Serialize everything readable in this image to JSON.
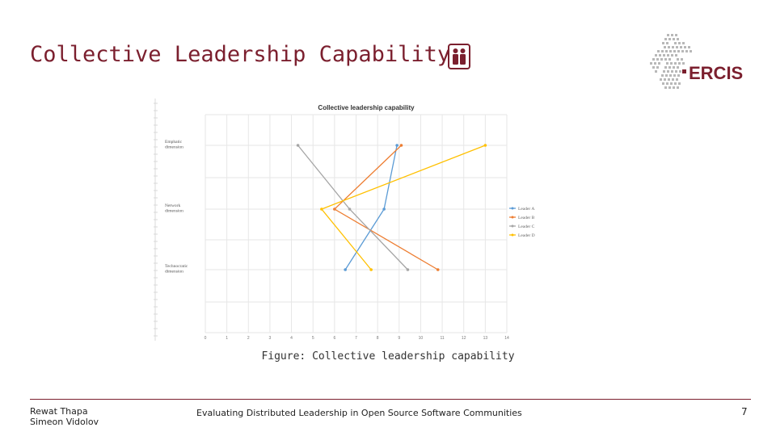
{
  "slide": {
    "title": "Collective Leadership Capability",
    "caption": "Figure: Collective leadership capability",
    "logo_text": "ERCIS",
    "authors": [
      "Rewat Thapa",
      "Simeon Vidolov"
    ],
    "footer_title": "Evaluating Distributed Leadership in Open Source Software Communities",
    "page_number": "7"
  },
  "colors": {
    "title": "#7b1f2e",
    "leader_a": "#5b9bd5",
    "leader_b": "#ed7d31",
    "leader_c": "#a5a5a5",
    "leader_d": "#ffc000"
  },
  "chart_data": {
    "type": "line",
    "title": "Collective leadership capability",
    "xlim": [
      0,
      14
    ],
    "x_ticks": [
      "0",
      "1",
      "2",
      "3",
      "4",
      "5",
      "6",
      "7",
      "8",
      "9",
      "10",
      "11",
      "12",
      "13",
      "14"
    ],
    "categories": [
      "Emphatic dimension",
      "Network dimension",
      "Technocratic dimension"
    ],
    "grid": true,
    "legend_position": "right",
    "series": [
      {
        "name": "Leader A",
        "values": [
          8.9,
          8.3,
          6.5
        ]
      },
      {
        "name": "Leader B",
        "values": [
          9.1,
          6.0,
          10.8
        ]
      },
      {
        "name": "Leader C",
        "values": [
          4.3,
          6.7,
          9.4
        ]
      },
      {
        "name": "Leader D",
        "values": [
          13.0,
          5.4,
          7.7
        ]
      }
    ]
  }
}
